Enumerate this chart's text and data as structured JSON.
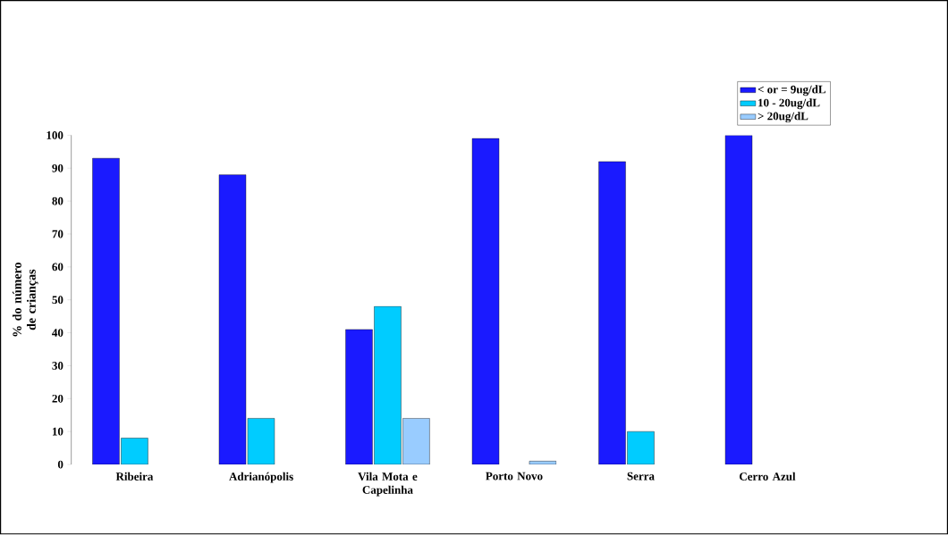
{
  "chart_data": {
    "type": "bar",
    "ylabel": "% do número de crianças",
    "categories": [
      "Ribeira",
      "Adrianópolis",
      "Vila Mota e Capelinha",
      "Porto Novo",
      "Serra",
      "Cerro Azul"
    ],
    "series": [
      {
        "name": "< or = 9ug/dL",
        "color": "#1a1aff",
        "values": [
          93,
          88,
          41,
          99,
          92,
          100
        ]
      },
      {
        "name": "10 - 20ug/dL",
        "color": "#00ccff",
        "values": [
          8,
          14,
          48,
          null,
          10,
          null
        ]
      },
      {
        "name": "> 20ug/dL",
        "color": "#99ccff",
        "values": [
          null,
          null,
          14,
          1,
          null,
          null
        ]
      }
    ],
    "ylim": [
      0,
      100
    ],
    "yticks": [
      0,
      10,
      20,
      30,
      40,
      50,
      60,
      70,
      80,
      90,
      100
    ],
    "grid": false,
    "legend": "top right"
  }
}
